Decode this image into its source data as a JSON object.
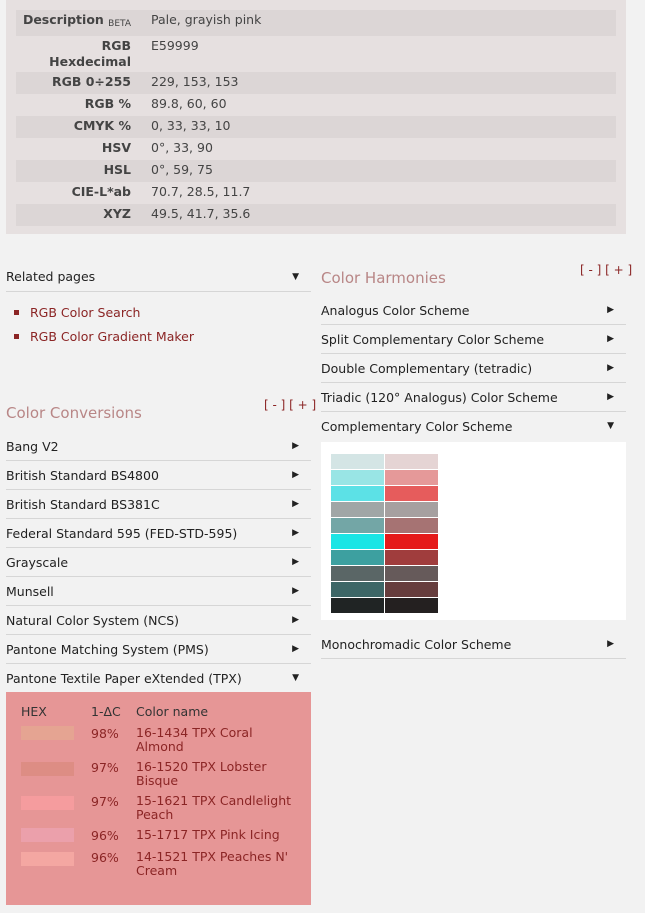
{
  "info": [
    {
      "label": "Description",
      "sup": "BETA",
      "value": "Pale, grayish pink"
    },
    {
      "label": "RGB Hexdecimal",
      "value": "E59999"
    },
    {
      "label": "RGB 0÷255",
      "value": "229, 153, 153"
    },
    {
      "label": "RGB %",
      "value": "89.8, 60, 60"
    },
    {
      "label": "CMYK %",
      "value": "0, 33, 33, 10"
    },
    {
      "label": "HSV",
      "value": "0°, 33, 90"
    },
    {
      "label": "HSL",
      "value": "0°, 59, 75"
    },
    {
      "label": "CIE-L*ab",
      "value": "70.7, 28.5, 11.7"
    },
    {
      "label": "XYZ",
      "value": "49.5, 41.7, 35.6"
    }
  ],
  "related": {
    "title": "Related pages",
    "links": [
      "RGB Color Search",
      "RGB Color Gradient Maker"
    ]
  },
  "conversions": {
    "title": "Color Conversions",
    "collapse": "[ - ]",
    "expand": "[ + ]",
    "items": [
      "Bang V2",
      "British Standard BS4800",
      "British Standard BS381C",
      "Federal Standard 595 (FED-STD-595)",
      "Grayscale",
      "Munsell",
      "Natural Color System (NCS)",
      "Pantone Matching System (PMS)",
      "Pantone Textile Paper eXtended (TPX)"
    ]
  },
  "tpx": {
    "headers": {
      "hex": "HEX",
      "delta": "1-ΔC",
      "name": "Color name"
    },
    "rows": [
      {
        "color": "#e5a492",
        "pct": "98%",
        "name": "16-1434 TPX Coral Almond"
      },
      {
        "color": "#dd8d84",
        "pct": "97%",
        "name": "16-1520 TPX Lobster Bisque"
      },
      {
        "color": "#f59c9e",
        "pct": "97%",
        "name": "15-1621 TPX Candlelight Peach"
      },
      {
        "color": "#eba0ab",
        "pct": "96%",
        "name": "15-1717 TPX Pink Icing"
      },
      {
        "color": "#f4a7a2",
        "pct": "96%",
        "name": "14-1521 TPX Peaches N' Cream"
      }
    ]
  },
  "harmonies": {
    "title": "Color Harmonies",
    "collapse": "[ - ]",
    "expand": "[ + ]",
    "items": [
      "Analogus Color Scheme",
      "Split Complementary Color Scheme",
      "Double Complementary (tetradic)",
      "Triadic (120° Analogus) Color Scheme",
      "Complementary Color Scheme"
    ],
    "after": "Monochromadic Color Scheme"
  },
  "complementary_swatches": {
    "left": [
      "#d4e5e5",
      "#99e5e5",
      "#5ce1e6",
      "#a0a6a6",
      "#73a6a6",
      "#1ae5e5",
      "#3da0a0",
      "#5a6666",
      "#3d6666",
      "#202424"
    ],
    "right": [
      "#e5d4d4",
      "#e59999",
      "#e65c5c",
      "#a6a0a0",
      "#a67373",
      "#e51a1a",
      "#a03d3d",
      "#665a5a",
      "#663d3d",
      "#242020"
    ]
  }
}
